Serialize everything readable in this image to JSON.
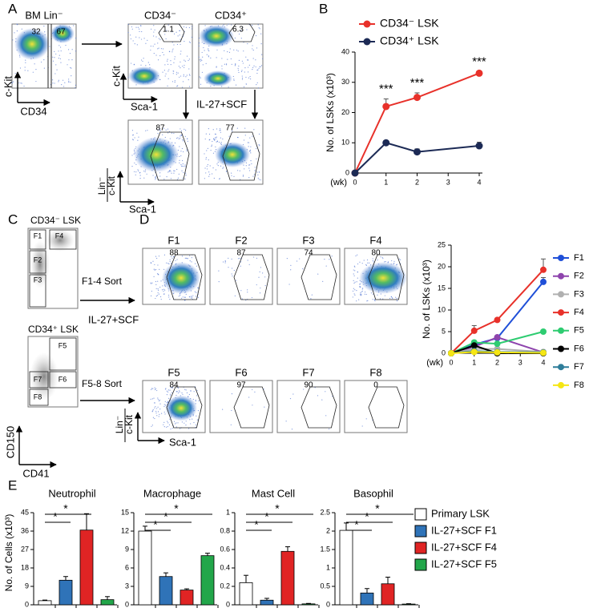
{
  "panel_a": {
    "label": "A",
    "bm_title": "BM Lin⁻",
    "gate_low": 32,
    "gate_high": 67,
    "y_axis": "c-Kit",
    "x_axis": "CD34",
    "neg_title": "CD34⁻",
    "pos_title": "CD34⁺",
    "neg_gate": 1.1,
    "pos_gate": 6.3,
    "sort_y": "c-Kit",
    "sort_x": "Sca-1",
    "treatment": "IL-27+SCF",
    "neg_result": 87,
    "pos_result": 77,
    "result_y1": "Lin⁻",
    "result_y2": "c-Kit",
    "result_x": "Sca-1"
  },
  "panel_c": {
    "label": "C",
    "upper_title": "CD34⁻ LSK",
    "upper_gates": [
      "F1",
      "F4",
      "F2",
      "F3"
    ],
    "upper_sort": "F1-4 Sort",
    "treatment": "IL-27+SCF",
    "lower_title": "CD34⁺ LSK",
    "lower_gates": [
      "F5",
      "F6",
      "F7",
      "F8"
    ],
    "lower_sort": "F5-8 Sort",
    "y_axis": "CD150",
    "x_axis": "CD41"
  },
  "panel_d": {
    "label": "D",
    "plots": [
      {
        "name": "F1",
        "percent": 88
      },
      {
        "name": "F2",
        "percent": 87
      },
      {
        "name": "F3",
        "percent": 74
      },
      {
        "name": "F4",
        "percent": 80
      },
      {
        "name": "F5",
        "percent": 84
      },
      {
        "name": "F6",
        "percent": 97
      },
      {
        "name": "F7",
        "percent": 90
      },
      {
        "name": "F8",
        "percent": 0
      }
    ],
    "y_axis_1": "Lin⁻",
    "y_axis_2": "c-Kit",
    "x_axis": "Sca-1"
  },
  "panel_e": {
    "label": "E",
    "y_label": "No. of Cells (x10³)",
    "legend": [
      {
        "name": "Primary LSK",
        "color": "#ffffff"
      },
      {
        "name": "IL-27+SCF F1",
        "color": "#2f73b8"
      },
      {
        "name": "IL-27+SCF F4",
        "color": "#e02424"
      },
      {
        "name": "IL-27+SCF F5",
        "color": "#22a64a"
      }
    ]
  },
  "chart_data": [
    {
      "type": "line",
      "panel": "B",
      "x": [
        0,
        1,
        2,
        4
      ],
      "xlim": [
        0,
        4
      ],
      "xticks": [
        0,
        1,
        2,
        3,
        4
      ],
      "ylim": [
        0,
        40
      ],
      "yticks": [
        0,
        10,
        20,
        30,
        40
      ],
      "y_label": "No. of LSKs (x10³)",
      "x_label": "(wk)",
      "series": [
        {
          "name": "CD34⁻ LSK",
          "color": "#e8312a",
          "values": [
            0,
            22,
            25,
            33
          ],
          "errors": [
            0,
            2.5,
            1.5,
            0.5
          ]
        },
        {
          "name": "CD34⁺ LSK",
          "color": "#1c2a55",
          "values": [
            0,
            10,
            7,
            9
          ],
          "errors": [
            0,
            0.5,
            1,
            1.2
          ]
        }
      ],
      "annotations": [
        {
          "x": 1,
          "text": "***"
        },
        {
          "x": 2,
          "text": "***"
        },
        {
          "x": 4,
          "text": "***"
        }
      ]
    },
    {
      "type": "line",
      "x": [
        0,
        1,
        2,
        4
      ],
      "xlim": [
        0,
        4
      ],
      "xticks": [
        0,
        1,
        2,
        3,
        4
      ],
      "ylim": [
        0,
        25
      ],
      "yticks": [
        0,
        5,
        10,
        15,
        20,
        25
      ],
      "y_label": "No. of LSKs (x10³)",
      "x_label": "(wk)",
      "series": [
        {
          "name": "F1",
          "color": "#1f4fd8",
          "values": [
            0,
            2,
            3.5,
            16.5
          ],
          "errors": [
            0,
            0.3,
            0.3,
            1
          ]
        },
        {
          "name": "F2",
          "color": "#8e44ad",
          "values": [
            0,
            1.5,
            3.7,
            0.2
          ],
          "errors": [
            0,
            0.2,
            0.3,
            0.1
          ]
        },
        {
          "name": "F3",
          "color": "#b0b0b0",
          "values": [
            0,
            1,
            1,
            0.3
          ],
          "errors": [
            0,
            0.2,
            0.2,
            0.1
          ]
        },
        {
          "name": "F4",
          "color": "#e8312a",
          "values": [
            0,
            5.2,
            7.7,
            19.3
          ],
          "errors": [
            0,
            1.2,
            0.4,
            2.5
          ]
        },
        {
          "name": "F5",
          "color": "#2ecc71",
          "values": [
            0,
            2.5,
            2.2,
            5
          ],
          "errors": [
            0,
            0.4,
            0.3,
            0.3
          ]
        },
        {
          "name": "F6",
          "color": "#000000",
          "values": [
            0,
            1.8,
            0,
            0
          ],
          "errors": [
            0,
            0.3,
            0,
            0
          ]
        },
        {
          "name": "F7",
          "color": "#2e7d9a",
          "values": [
            0,
            0.5,
            0.3,
            0.2
          ],
          "errors": [
            0,
            0.1,
            0.1,
            0.1
          ]
        },
        {
          "name": "F8",
          "color": "#f5e614",
          "values": [
            0,
            0.3,
            0.2,
            0.1
          ],
          "errors": [
            0,
            0.1,
            0.1,
            0.1
          ]
        }
      ]
    },
    {
      "type": "bar",
      "title": "Neutrophil",
      "values": [
        2,
        12,
        36.5,
        2.5
      ],
      "errors": [
        0.3,
        1.8,
        8,
        1.5
      ],
      "ylim": [
        0,
        45
      ],
      "yticks": [
        0,
        9,
        18,
        27,
        36,
        45
      ],
      "significance": [
        "*",
        "*"
      ]
    },
    {
      "type": "bar",
      "title": "Macrophage",
      "values": [
        12,
        4.6,
        2.4,
        8
      ],
      "errors": [
        0.8,
        0.6,
        0.2,
        0.4
      ],
      "ylim": [
        0,
        15
      ],
      "yticks": [
        0,
        3,
        6,
        9,
        12,
        15
      ],
      "significance": [
        "*",
        "*",
        "*"
      ]
    },
    {
      "type": "bar",
      "title": "Mast Cell",
      "values": [
        0.24,
        0.05,
        0.58,
        0.01
      ],
      "errors": [
        0.08,
        0.02,
        0.05,
        0.005
      ],
      "ylim": [
        0,
        1
      ],
      "yticks": [
        0,
        0.2,
        0.4,
        0.6,
        0.8,
        1
      ],
      "significance": [
        "*",
        "*",
        "*"
      ]
    },
    {
      "type": "bar",
      "title": "Basophil",
      "values": [
        2.02,
        0.32,
        0.57,
        0.02
      ],
      "errors": [
        0.2,
        0.12,
        0.18,
        0.01
      ],
      "ylim": [
        0,
        2.5
      ],
      "yticks": [
        0,
        0.5,
        1,
        1.5,
        2,
        2.5
      ],
      "significance": [
        "*",
        "*",
        "*"
      ]
    }
  ]
}
